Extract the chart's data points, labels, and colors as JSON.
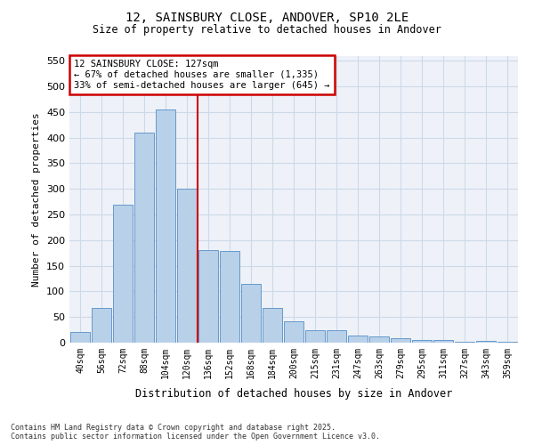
{
  "title_line1": "12, SAINSBURY CLOSE, ANDOVER, SP10 2LE",
  "title_line2": "Size of property relative to detached houses in Andover",
  "xlabel": "Distribution of detached houses by size in Andover",
  "ylabel": "Number of detached properties",
  "footer_line1": "Contains HM Land Registry data © Crown copyright and database right 2025.",
  "footer_line2": "Contains public sector information licensed under the Open Government Licence v3.0.",
  "annotation_line1": "12 SAINSBURY CLOSE: 127sqm",
  "annotation_line2": "← 67% of detached houses are smaller (1,335)",
  "annotation_line3": "33% of semi-detached houses are larger (645) →",
  "vline_color": "#cc0000",
  "bar_color": "#b8d0e8",
  "bar_edge_color": "#6699cc",
  "annotation_box_edge": "#cc0000",
  "categories": [
    "40sqm",
    "56sqm",
    "72sqm",
    "88sqm",
    "104sqm",
    "120sqm",
    "136sqm",
    "152sqm",
    "168sqm",
    "184sqm",
    "200sqm",
    "215sqm",
    "231sqm",
    "247sqm",
    "263sqm",
    "279sqm",
    "295sqm",
    "311sqm",
    "327sqm",
    "343sqm",
    "359sqm"
  ],
  "values": [
    20,
    68,
    270,
    410,
    455,
    300,
    180,
    178,
    115,
    68,
    42,
    25,
    25,
    14,
    12,
    8,
    5,
    5,
    2,
    4,
    2
  ],
  "vline_pos": 5.5,
  "ylim": [
    0,
    560
  ],
  "yticks": [
    0,
    50,
    100,
    150,
    200,
    250,
    300,
    350,
    400,
    450,
    500,
    550
  ],
  "grid_color": "#ccd9e8",
  "bg_color": "#eef2f8",
  "fig_bg": "#ffffff"
}
